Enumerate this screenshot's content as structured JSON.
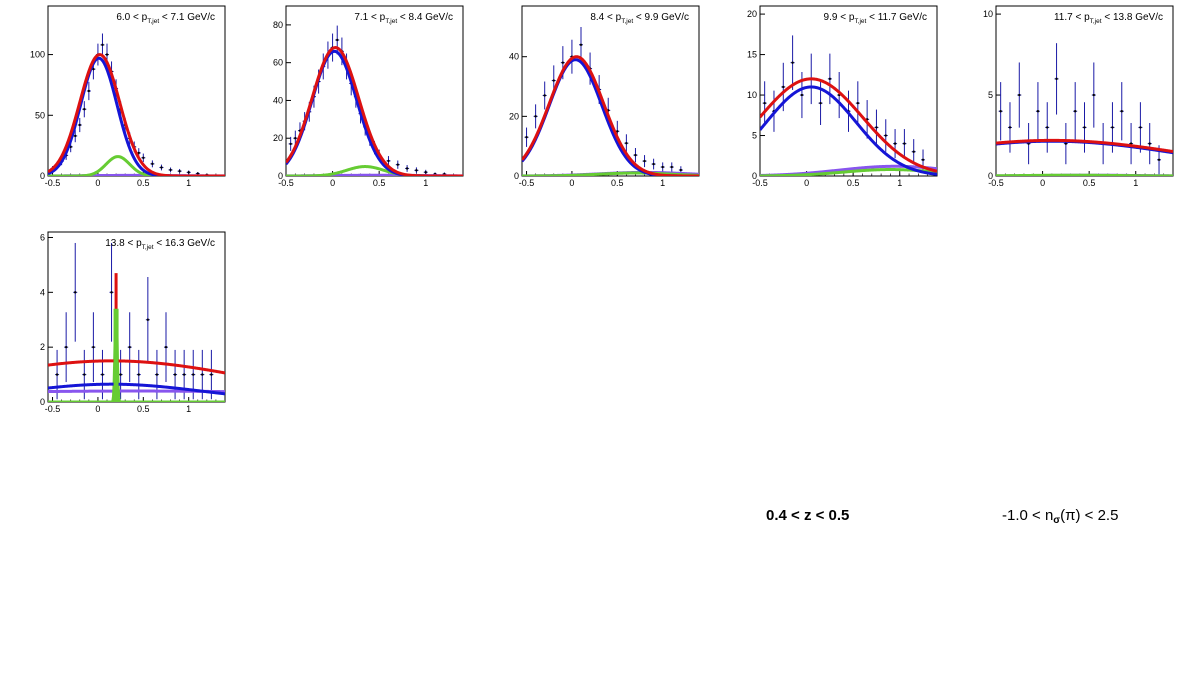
{
  "annotations": {
    "z_range": "0.4 < z < 0.5",
    "nsigma_pre": "-1.0 < n",
    "nsigma_sub": "σ",
    "nsigma_post": "(π) < 2.5"
  },
  "colors": {
    "data": "#1a1aa6",
    "total": "#dd1111",
    "pion": "#1515d6",
    "green": "#66cc33",
    "purple": "#8855ee"
  },
  "chart_data": [
    {
      "type": "scatter",
      "title_pre": "6.0 < p",
      "title_sub": "T,jet",
      "title_post": " < 7.1 GeV/c",
      "xlim": [
        -0.55,
        1.4
      ],
      "ylim": [
        0,
        140
      ],
      "xticks": [
        "-0.5",
        "0",
        "0.5",
        "1"
      ],
      "yticks": [
        "0",
        "50",
        "100"
      ],
      "curves": {
        "total": {
          "mu": 0.02,
          "sigma": 0.22,
          "amp": 100
        },
        "pion": {
          "mu": 0.01,
          "sigma": 0.2,
          "amp": 97
        },
        "green": {
          "mu": 0.22,
          "sigma": 0.13,
          "amp": 16
        },
        "purple": {
          "mu": 0.4,
          "sigma": 0.5,
          "amp": 0.5
        }
      },
      "points": [
        [
          -0.5,
          6
        ],
        [
          -0.45,
          8
        ],
        [
          -0.4,
          12
        ],
        [
          -0.35,
          17
        ],
        [
          -0.3,
          24
        ],
        [
          -0.25,
          33
        ],
        [
          -0.2,
          42
        ],
        [
          -0.15,
          55
        ],
        [
          -0.1,
          70
        ],
        [
          -0.05,
          88
        ],
        [
          0,
          100
        ],
        [
          0.05,
          108
        ],
        [
          0.1,
          100
        ],
        [
          0.15,
          86
        ],
        [
          0.2,
          72
        ],
        [
          0.25,
          55
        ],
        [
          0.3,
          42
        ],
        [
          0.35,
          31
        ],
        [
          0.4,
          24
        ],
        [
          0.45,
          19
        ],
        [
          0.5,
          15
        ],
        [
          0.6,
          10
        ],
        [
          0.7,
          7
        ],
        [
          0.8,
          5
        ],
        [
          0.9,
          4
        ],
        [
          1,
          3
        ],
        [
          1.1,
          2
        ],
        [
          1.2,
          1
        ]
      ]
    },
    {
      "type": "scatter",
      "title_pre": "7.1 < p",
      "title_sub": "T,jet",
      "title_post": " < 8.4 GeV/c",
      "xlim": [
        -0.5,
        1.4
      ],
      "ylim": [
        0,
        90
      ],
      "xticks": [
        "-0.5",
        "0",
        "0.5",
        "1"
      ],
      "yticks": [
        "0",
        "20",
        "40",
        "60",
        "80"
      ],
      "curves": {
        "total": {
          "mu": 0.03,
          "sigma": 0.25,
          "amp": 68
        },
        "pion": {
          "mu": 0.02,
          "sigma": 0.24,
          "amp": 66
        },
        "green": {
          "mu": 0.35,
          "sigma": 0.2,
          "amp": 5
        },
        "purple": {
          "mu": 0.5,
          "sigma": 0.5,
          "amp": 0.4
        }
      },
      "points": [
        [
          -0.45,
          17
        ],
        [
          -0.4,
          20
        ],
        [
          -0.35,
          24
        ],
        [
          -0.3,
          29
        ],
        [
          -0.25,
          34
        ],
        [
          -0.2,
          42
        ],
        [
          -0.15,
          50
        ],
        [
          -0.1,
          58
        ],
        [
          -0.05,
          64
        ],
        [
          0,
          68
        ],
        [
          0.05,
          72
        ],
        [
          0.1,
          66
        ],
        [
          0.15,
          58
        ],
        [
          0.2,
          49
        ],
        [
          0.25,
          42
        ],
        [
          0.3,
          33
        ],
        [
          0.35,
          26
        ],
        [
          0.4,
          20
        ],
        [
          0.45,
          15
        ],
        [
          0.5,
          11
        ],
        [
          0.6,
          8
        ],
        [
          0.7,
          6
        ],
        [
          0.8,
          4
        ],
        [
          0.9,
          3
        ],
        [
          1,
          2
        ],
        [
          1.1,
          1
        ],
        [
          1.2,
          1
        ]
      ]
    },
    {
      "type": "scatter",
      "title_pre": "8.4 < p",
      "title_sub": "T,jet",
      "title_post": " < 9.9 GeV/c",
      "xlim": [
        -0.55,
        1.4
      ],
      "ylim": [
        0,
        57
      ],
      "xticks": [
        "-0.5",
        "0",
        "0.5",
        "1"
      ],
      "yticks": [
        "0",
        "20",
        "40"
      ],
      "curves": {
        "total": {
          "mu": 0.05,
          "sigma": 0.3,
          "amp": 40
        },
        "pion": {
          "mu": 0.04,
          "sigma": 0.29,
          "amp": 39
        },
        "green": {
          "mu": 0.7,
          "sigma": 0.4,
          "amp": 1
        },
        "purple": {
          "mu": 0.8,
          "sigma": 0.5,
          "amp": 1.2
        }
      },
      "points": [
        [
          -0.5,
          13
        ],
        [
          -0.4,
          20
        ],
        [
          -0.3,
          27
        ],
        [
          -0.2,
          32
        ],
        [
          -0.1,
          38
        ],
        [
          0,
          40
        ],
        [
          0.1,
          44
        ],
        [
          0.2,
          36
        ],
        [
          0.3,
          29
        ],
        [
          0.4,
          22
        ],
        [
          0.5,
          15
        ],
        [
          0.6,
          11
        ],
        [
          0.7,
          7
        ],
        [
          0.8,
          5
        ],
        [
          0.9,
          4
        ],
        [
          1,
          3
        ],
        [
          1.1,
          3
        ],
        [
          1.2,
          2
        ]
      ]
    },
    {
      "type": "scatter",
      "title_pre": "9.9 < p",
      "title_sub": "T,jet",
      "title_post": " < 11.7 GeV/c",
      "xlim": [
        -0.5,
        1.4
      ],
      "ylim": [
        0,
        21
      ],
      "xticks": [
        "-0.5",
        "0",
        "0.5",
        "1"
      ],
      "yticks": [
        "0",
        "5",
        "10",
        "15",
        "20"
      ],
      "curves": {
        "total": {
          "mu": 0.05,
          "sigma": 0.55,
          "amp": 12
        },
        "pion": {
          "mu": 0.05,
          "sigma": 0.48,
          "amp": 11
        },
        "green": {
          "mu": 0.9,
          "sigma": 0.5,
          "amp": 0.8
        },
        "purple": {
          "mu": 0.95,
          "sigma": 0.6,
          "amp": 1.2
        }
      },
      "points": [
        [
          -0.45,
          9
        ],
        [
          -0.35,
          8
        ],
        [
          -0.25,
          11
        ],
        [
          -0.15,
          14
        ],
        [
          -0.05,
          10
        ],
        [
          0.05,
          12
        ],
        [
          0.15,
          9
        ],
        [
          0.25,
          12
        ],
        [
          0.35,
          10
        ],
        [
          0.45,
          8
        ],
        [
          0.55,
          9
        ],
        [
          0.65,
          7
        ],
        [
          0.75,
          6
        ],
        [
          0.85,
          5
        ],
        [
          0.95,
          4
        ],
        [
          1.05,
          4
        ],
        [
          1.15,
          3
        ],
        [
          1.25,
          2
        ]
      ]
    },
    {
      "type": "scatter",
      "title_pre": "11.7 < p",
      "title_sub": "T,jet",
      "title_post": " < 13.8 GeV/c",
      "xlim": [
        -0.5,
        1.4
      ],
      "ylim": [
        0,
        10.5
      ],
      "xticks": [
        "-0.5",
        "0",
        "0.5",
        "1"
      ],
      "yticks": [
        "0",
        "5",
        "10"
      ],
      "curves": {
        "total": {
          "mu": 0.1,
          "sigma": 1.5,
          "amp": 2.2
        },
        "pion": {
          "mu": 0.1,
          "sigma": 1.45,
          "amp": 2.15
        },
        "green": {
          "mu": 0.3,
          "sigma": 0.5,
          "amp": 0.05
        },
        "purple": {
          "mu": 0.5,
          "sigma": 0.5,
          "amp": 0.05
        }
      },
      "points": [
        [
          -0.45,
          4
        ],
        [
          -0.35,
          3
        ],
        [
          -0.25,
          5
        ],
        [
          -0.15,
          2
        ],
        [
          -0.05,
          4
        ],
        [
          0.05,
          3
        ],
        [
          0.15,
          6
        ],
        [
          0.25,
          2
        ],
        [
          0.35,
          4
        ],
        [
          0.45,
          3
        ],
        [
          0.55,
          5
        ],
        [
          0.65,
          2
        ],
        [
          0.75,
          3
        ],
        [
          0.85,
          4
        ],
        [
          0.95,
          2
        ],
        [
          1.05,
          3
        ],
        [
          1.15,
          2
        ],
        [
          1.25,
          1
        ]
      ]
    },
    {
      "type": "scatter",
      "title_pre": "13.8 < p",
      "title_sub": "T,jet",
      "title_post": " < 16.3 GeV/c",
      "xlim": [
        -0.55,
        1.4
      ],
      "ylim": [
        0,
        6.2
      ],
      "xticks": [
        "-0.5",
        "0",
        "0.5",
        "1"
      ],
      "yticks": [
        "0",
        "2",
        "4",
        "6"
      ],
      "curves": {
        "total": {
          "mu": 0.15,
          "sigma": 1.5,
          "amp": 1.5
        },
        "pion": {
          "mu": 0.15,
          "sigma": 1.0,
          "amp": 0.65
        },
        "green": {
          "mu": 0.2,
          "sigma": 0.012,
          "amp": 3.4
        },
        "purple": {
          "mu": 0.4,
          "sigma": 3,
          "amp": 0.4
        },
        "spike": {
          "mu": 0.2,
          "sigma": 0.01,
          "amp": 3.3
        }
      },
      "points": [
        [
          -0.45,
          1
        ],
        [
          -0.35,
          2
        ],
        [
          -0.25,
          4
        ],
        [
          -0.15,
          1
        ],
        [
          -0.05,
          2
        ],
        [
          0.05,
          1
        ],
        [
          0.15,
          4
        ],
        [
          0.25,
          1
        ],
        [
          0.35,
          2
        ],
        [
          0.45,
          1
        ],
        [
          0.55,
          3
        ],
        [
          0.65,
          1
        ],
        [
          0.75,
          2
        ],
        [
          0.85,
          1
        ],
        [
          0.95,
          1
        ],
        [
          1.05,
          1
        ],
        [
          1.15,
          1
        ],
        [
          1.25,
          1
        ]
      ]
    }
  ]
}
